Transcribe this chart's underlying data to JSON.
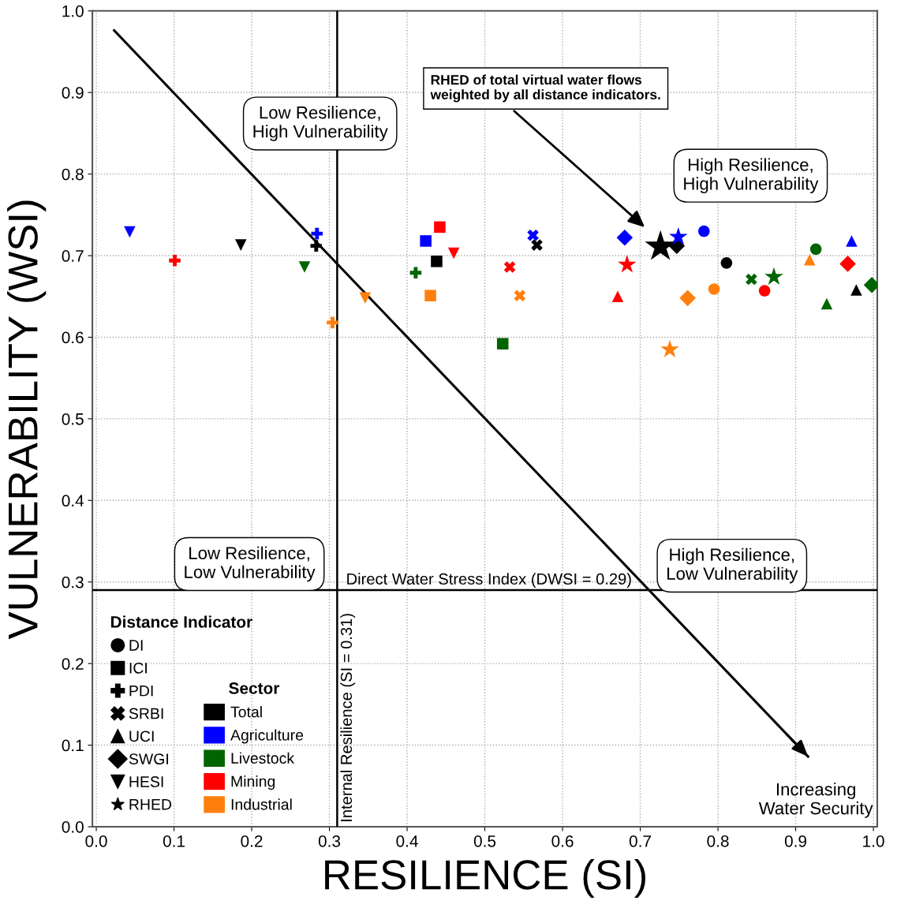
{
  "chart_data": {
    "type": "scatter",
    "xlabel": "RESILIENCE (SI)",
    "ylabel": "VULNERABILITY (WSI)",
    "xlim": [
      -0.005,
      1.005
    ],
    "ylim": [
      0.0,
      1.0
    ],
    "xticks": [
      {
        "value": 0.0,
        "label": "0.0"
      },
      0.1,
      0.2,
      0.3,
      0.4,
      0.5,
      0.6,
      0.7,
      0.8,
      0.9,
      {
        "value": 1.0,
        "label": "1.0"
      }
    ],
    "yticks": [
      {
        "value": 0.0,
        "label": "0.0"
      },
      0.1,
      0.2,
      0.3,
      0.4,
      0.5,
      0.6,
      0.7,
      0.8,
      0.9,
      {
        "value": 1.0,
        "label": "1.0"
      }
    ],
    "grid": true,
    "legend": "bottom left",
    "legend_title": [
      "Distance Indicator",
      "Sector"
    ],
    "series": [
      {
        "name": "DI",
        "marker": "circle",
        "colors": [
          "#000000",
          "#0000ff",
          "#006400",
          "#ff0000",
          "#ff7f0e"
        ],
        "x": [
          0.811,
          0.782,
          0.926,
          0.86,
          0.795
        ],
        "values": [
          0.691,
          0.73,
          0.708,
          0.657,
          0.659
        ]
      },
      {
        "name": "ICI",
        "marker": "square",
        "colors": [
          "#000000",
          "#0000ff",
          "#006400",
          "#ff0000",
          "#ff7f0e"
        ],
        "x": [
          0.438,
          0.424,
          0.523,
          0.442,
          0.43
        ],
        "values": [
          0.693,
          0.718,
          0.592,
          0.735,
          0.651
        ]
      },
      {
        "name": "PDI",
        "marker": "plus",
        "colors": [
          "#000000",
          "#0000ff",
          "#006400",
          "#ff0000",
          "#ff7f0e"
        ],
        "x": [
          0.283,
          0.284,
          0.411,
          0.101,
          0.304
        ],
        "values": [
          0.712,
          0.727,
          0.679,
          0.694,
          0.618
        ]
      },
      {
        "name": "SRBI",
        "marker": "x",
        "colors": [
          "#000000",
          "#0000ff",
          "#006400",
          "#ff0000",
          "#ff7f0e"
        ],
        "x": [
          0.567,
          0.562,
          0.843,
          0.532,
          0.545
        ],
        "values": [
          0.713,
          0.725,
          0.671,
          0.686,
          0.651
        ]
      },
      {
        "name": "UCI",
        "marker": "triangle",
        "colors": [
          "#000000",
          "#0000ff",
          "#006400",
          "#ff0000",
          "#ff7f0e"
        ],
        "x": [
          0.978,
          0.972,
          0.94,
          0.671,
          0.918
        ],
        "values": [
          0.658,
          0.718,
          0.641,
          0.65,
          0.695
        ]
      },
      {
        "name": "SWGI",
        "marker": "diamond",
        "colors": [
          "#000000",
          "#0000ff",
          "#006400",
          "#ff0000",
          "#ff7f0e"
        ],
        "x": [
          0.747,
          0.68,
          0.998,
          0.967,
          0.761
        ],
        "values": [
          0.712,
          0.722,
          0.664,
          0.69,
          0.648
        ]
      },
      {
        "name": "HESI",
        "marker": "triangle_down",
        "colors": [
          "#000000",
          "#0000ff",
          "#006400",
          "#ff0000",
          "#ff7f0e"
        ],
        "x": [
          0.186,
          0.043,
          0.268,
          0.46,
          0.346
        ],
        "values": [
          0.713,
          0.729,
          0.686,
          0.703,
          0.648
        ]
      },
      {
        "name": "RHED",
        "marker": "star",
        "sizes": [
          1,
          0.35,
          0.35,
          0.35,
          0.35
        ],
        "colors": [
          "#000000",
          "#0000ff",
          "#006400",
          "#ff0000",
          "#ff7f0e"
        ],
        "x": [
          0.726,
          0.749,
          0.872,
          0.683,
          0.738
        ],
        "values": [
          0.711,
          0.723,
          0.674,
          0.689,
          0.585
        ]
      },
      {
        "name": "Total",
        "marker": "square",
        "color": "#000000"
      },
      {
        "name": "Agriculture",
        "marker": "square",
        "color": "#0000ff"
      },
      {
        "name": "Livestock",
        "marker": "square",
        "color": "#006400"
      },
      {
        "name": "Mining",
        "marker": "square",
        "color": "#ff0000"
      },
      {
        "name": "Industrial",
        "marker": "square",
        "color": "#ff7f0e"
      },
      {
        "type": "line",
        "color": "#000000",
        "x": [
          0.023,
          0.916
        ],
        "values": [
          0.976,
          0.086
        ]
      }
    ],
    "ref_lines": [
      {
        "axis": "y",
        "value": 0.29,
        "label": "Direct Water Stress Index (DWSI = 0.29)",
        "color": "#000000"
      },
      {
        "axis": "x",
        "value": 0.31,
        "label": "Internal Resilience (SI = 0.31)",
        "color": "#000000"
      }
    ],
    "annotations": [
      "Low Resilience,\nHigh Vulnerability",
      "High Resilience,\nHigh Vulnerability",
      "Low Resilience,\nLow Vulnerability",
      "High Resilience,\nLow Vulnerability",
      "RHED of total virtual water flows\nweighted by all distance indicators.",
      "Increasing\nWater Security"
    ]
  }
}
